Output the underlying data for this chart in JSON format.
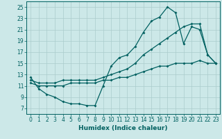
{
  "bg_color": "#cce8e8",
  "grid_color": "#aacccc",
  "line_color": "#006060",
  "line_width": 0.9,
  "marker": "D",
  "marker_size": 2.0,
  "xlabel": "Humidex (Indice chaleur)",
  "xlabel_fontsize": 6.5,
  "tick_fontsize": 5.5,
  "xlim": [
    -0.5,
    23.5
  ],
  "ylim": [
    6,
    26
  ],
  "yticks": [
    7,
    9,
    11,
    13,
    15,
    17,
    19,
    21,
    23,
    25
  ],
  "xticks": [
    0,
    1,
    2,
    3,
    4,
    5,
    6,
    7,
    8,
    9,
    10,
    11,
    12,
    13,
    14,
    15,
    16,
    17,
    18,
    19,
    20,
    21,
    22,
    23
  ],
  "line1_x": [
    0,
    1,
    2,
    3,
    4,
    5,
    6,
    7,
    8,
    9,
    10,
    11,
    12,
    13,
    14,
    15,
    16,
    17,
    18,
    19,
    20,
    21,
    22,
    23
  ],
  "line1_y": [
    12.5,
    10.5,
    9.5,
    9.0,
    8.2,
    7.8,
    7.8,
    7.5,
    7.5,
    11.0,
    14.5,
    16.0,
    16.5,
    18.0,
    20.5,
    22.5,
    23.2,
    25.0,
    24.0,
    18.5,
    21.5,
    21.0,
    16.5,
    15.0
  ],
  "line2_x": [
    0,
    1,
    2,
    3,
    4,
    5,
    6,
    7,
    8,
    9,
    10,
    11,
    12,
    13,
    14,
    15,
    16,
    17,
    18,
    19,
    20,
    21,
    22,
    23
  ],
  "line2_y": [
    12.0,
    11.5,
    11.5,
    11.5,
    12.0,
    12.0,
    12.0,
    12.0,
    12.0,
    12.5,
    13.0,
    13.5,
    14.0,
    15.0,
    16.5,
    17.5,
    18.5,
    19.5,
    20.5,
    21.5,
    22.0,
    22.0,
    16.5,
    15.0
  ],
  "line3_x": [
    0,
    1,
    2,
    3,
    4,
    5,
    6,
    7,
    8,
    9,
    10,
    11,
    12,
    13,
    14,
    15,
    16,
    17,
    18,
    19,
    20,
    21,
    22,
    23
  ],
  "line3_y": [
    11.5,
    11.0,
    11.0,
    11.0,
    11.0,
    11.5,
    11.5,
    11.5,
    11.5,
    12.0,
    12.0,
    12.5,
    12.5,
    13.0,
    13.5,
    14.0,
    14.5,
    14.5,
    15.0,
    15.0,
    15.0,
    15.5,
    15.0,
    15.0
  ]
}
